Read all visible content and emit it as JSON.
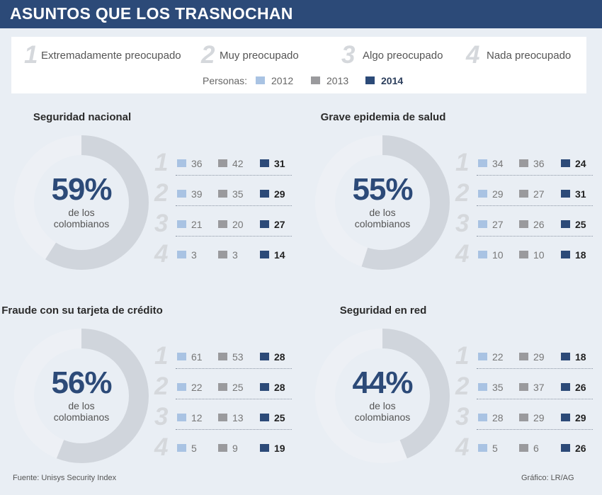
{
  "title": "ASUNTOS QUE LOS TRASNOCHAN",
  "legend": {
    "levels": [
      {
        "num": "1",
        "label": "Extremadamente preocupado"
      },
      {
        "num": "2",
        "label": "Muy preocupado"
      },
      {
        "num": "3",
        "label": "Algo preocupado"
      },
      {
        "num": "4",
        "label": "Nada preocupado"
      }
    ],
    "personas_label": "Personas:",
    "years": [
      "2012",
      "2013",
      "2014"
    ]
  },
  "colors": {
    "y2012": "#a9c3e3",
    "y2013": "#9a9a9d",
    "y2014": "#2c4a78",
    "donut_track": "#edf0f5",
    "donut_fill": "#d0d5dc"
  },
  "chart_data": [
    {
      "type": "donut",
      "title": "Seguridad nacional",
      "percent": 59,
      "percent_label": "59%",
      "sub_label": [
        "de los",
        "colombianos"
      ],
      "rows": [
        {
          "level": "1",
          "values": [
            36,
            42,
            31
          ]
        },
        {
          "level": "2",
          "values": [
            39,
            35,
            29
          ]
        },
        {
          "level": "3",
          "values": [
            21,
            20,
            27
          ]
        },
        {
          "level": "4",
          "values": [
            3,
            3,
            14
          ]
        }
      ]
    },
    {
      "type": "donut",
      "title": "Grave epidemia de salud",
      "percent": 55,
      "percent_label": "55%",
      "sub_label": [
        "de los",
        "colombianos"
      ],
      "rows": [
        {
          "level": "1",
          "values": [
            34,
            36,
            24
          ]
        },
        {
          "level": "2",
          "values": [
            29,
            27,
            31
          ]
        },
        {
          "level": "3",
          "values": [
            27,
            26,
            25
          ]
        },
        {
          "level": "4",
          "values": [
            10,
            10,
            18
          ]
        }
      ]
    },
    {
      "type": "donut",
      "title": "Fraude con su tarjeta de crédito",
      "percent": 56,
      "percent_label": "56%",
      "sub_label": [
        "de los",
        "colombianos"
      ],
      "rows": [
        {
          "level": "1",
          "values": [
            61,
            53,
            28
          ]
        },
        {
          "level": "2",
          "values": [
            22,
            25,
            28
          ]
        },
        {
          "level": "3",
          "values": [
            12,
            13,
            25
          ]
        },
        {
          "level": "4",
          "values": [
            5,
            9,
            19
          ]
        }
      ]
    },
    {
      "type": "donut",
      "title": "Seguridad en red",
      "percent": 44,
      "percent_label": "44%",
      "sub_label": [
        "de los",
        "colombianos"
      ],
      "rows": [
        {
          "level": "1",
          "values": [
            22,
            29,
            18
          ]
        },
        {
          "level": "2",
          "values": [
            35,
            37,
            26
          ]
        },
        {
          "level": "3",
          "values": [
            28,
            29,
            29
          ]
        },
        {
          "level": "4",
          "values": [
            5,
            6,
            26
          ]
        }
      ]
    }
  ],
  "footer": {
    "source": "Fuente: Unisys Security Index",
    "credit": "Gráfico: LR/AG"
  }
}
